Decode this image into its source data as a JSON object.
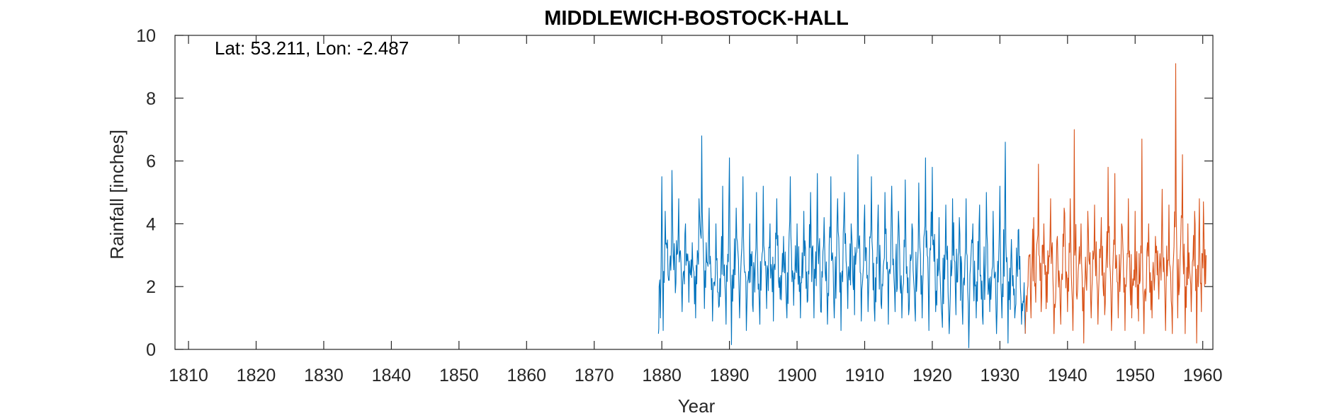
{
  "chart_data": {
    "type": "line",
    "title": "MIDDLEWICH-BOSTOCK-HALL",
    "xlabel": "Year",
    "ylabel": "Rainfall [inches]",
    "annotation": "Lat: 53.211, Lon: -2.487",
    "xlim": [
      1808,
      1961.5
    ],
    "ylim": [
      0,
      10
    ],
    "xticks": [
      1810,
      1820,
      1830,
      1840,
      1850,
      1860,
      1870,
      1880,
      1890,
      1900,
      1910,
      1920,
      1930,
      1940,
      1950,
      1960
    ],
    "yticks": [
      0,
      2,
      4,
      6,
      8,
      10
    ],
    "grid": false,
    "legend": "none",
    "series": [
      {
        "color": "#0072BD",
        "x_start": 1879.5,
        "x_end": 1933.75,
        "points": [
          [
            1879.5,
            0.5
          ],
          [
            1879.6,
            2.0
          ],
          [
            1879.8,
            1.0
          ],
          [
            1880.0,
            5.5
          ],
          [
            1880.2,
            0.6
          ],
          [
            1880.5,
            4.4
          ],
          [
            1881.0,
            2.2
          ],
          [
            1881.5,
            5.7
          ],
          [
            1882.0,
            1.8
          ],
          [
            1882.5,
            4.8
          ],
          [
            1883.0,
            1.2
          ],
          [
            1883.5,
            4.0
          ],
          [
            1884.0,
            1.5
          ],
          [
            1884.5,
            3.4
          ],
          [
            1885.0,
            1.0
          ],
          [
            1885.5,
            4.8
          ],
          [
            1885.9,
            6.8
          ],
          [
            1886.3,
            1.3
          ],
          [
            1887.0,
            4.5
          ],
          [
            1887.5,
            0.9
          ],
          [
            1888.0,
            4.0
          ],
          [
            1888.5,
            1.4
          ],
          [
            1889.0,
            5.2
          ],
          [
            1889.5,
            0.8
          ],
          [
            1890.0,
            6.1
          ],
          [
            1890.3,
            0.15
          ],
          [
            1891.0,
            4.5
          ],
          [
            1891.5,
            1.0
          ],
          [
            1892.0,
            5.5
          ],
          [
            1892.5,
            0.6
          ],
          [
            1893.0,
            4.0
          ],
          [
            1893.5,
            1.2
          ],
          [
            1894.0,
            5.0
          ],
          [
            1894.5,
            0.8
          ],
          [
            1895.0,
            5.2
          ],
          [
            1895.5,
            1.3
          ],
          [
            1896.0,
            4.0
          ],
          [
            1896.5,
            0.9
          ],
          [
            1897.0,
            4.8
          ],
          [
            1897.5,
            1.6
          ],
          [
            1898.0,
            3.6
          ],
          [
            1898.5,
            1.0
          ],
          [
            1899.0,
            5.5
          ],
          [
            1899.5,
            1.4
          ],
          [
            1900.0,
            4.0
          ],
          [
            1900.5,
            1.0
          ],
          [
            1901.0,
            4.4
          ],
          [
            1901.5,
            1.5
          ],
          [
            1902.0,
            5.0
          ],
          [
            1902.5,
            1.0
          ],
          [
            1903.0,
            5.6
          ],
          [
            1903.5,
            1.2
          ],
          [
            1904.0,
            4.2
          ],
          [
            1904.5,
            0.8
          ],
          [
            1905.0,
            5.5
          ],
          [
            1905.5,
            1.0
          ],
          [
            1906.0,
            4.8
          ],
          [
            1906.5,
            0.6
          ],
          [
            1907.0,
            5.0
          ],
          [
            1907.5,
            1.3
          ],
          [
            1908.0,
            4.0
          ],
          [
            1908.5,
            1.1
          ],
          [
            1909.0,
            6.2
          ],
          [
            1909.5,
            0.9
          ],
          [
            1910.0,
            4.6
          ],
          [
            1910.5,
            1.2
          ],
          [
            1911.0,
            5.5
          ],
          [
            1911.5,
            0.9
          ],
          [
            1912.0,
            4.6
          ],
          [
            1912.5,
            1.3
          ],
          [
            1913.0,
            5.0
          ],
          [
            1913.5,
            0.8
          ],
          [
            1914.0,
            5.2
          ],
          [
            1914.5,
            1.2
          ],
          [
            1915.0,
            4.4
          ],
          [
            1915.5,
            1.0
          ],
          [
            1916.0,
            5.4
          ],
          [
            1916.5,
            1.1
          ],
          [
            1917.0,
            4.0
          ],
          [
            1917.5,
            0.9
          ],
          [
            1918.0,
            5.3
          ],
          [
            1918.5,
            1.0
          ],
          [
            1919.0,
            6.1
          ],
          [
            1919.5,
            0.6
          ],
          [
            1920.0,
            5.8
          ],
          [
            1920.5,
            1.2
          ],
          [
            1921.0,
            4.2
          ],
          [
            1921.5,
            0.7
          ],
          [
            1922.0,
            4.6
          ],
          [
            1922.5,
            0.5
          ],
          [
            1923.0,
            4.8
          ],
          [
            1923.5,
            1.1
          ],
          [
            1924.0,
            4.2
          ],
          [
            1924.5,
            0.8
          ],
          [
            1925.0,
            4.8
          ],
          [
            1925.4,
            0.05
          ],
          [
            1926.0,
            4.0
          ],
          [
            1926.5,
            1.0
          ],
          [
            1927.0,
            4.6
          ],
          [
            1927.5,
            0.8
          ],
          [
            1928.0,
            5.0
          ],
          [
            1928.5,
            1.2
          ],
          [
            1929.0,
            4.4
          ],
          [
            1929.5,
            0.5
          ],
          [
            1930.0,
            5.2
          ],
          [
            1930.3,
            1.0
          ],
          [
            1930.8,
            6.6
          ],
          [
            1931.2,
            0.2
          ],
          [
            1931.7,
            3.5
          ],
          [
            1932.2,
            1.0
          ],
          [
            1932.7,
            3.8
          ],
          [
            1933.2,
            0.8
          ],
          [
            1933.5,
            1.5
          ],
          [
            1933.75,
            0.5
          ]
        ]
      },
      {
        "color": "#D95319",
        "x_start": 1933.75,
        "x_end": 1960.5,
        "points": [
          [
            1933.75,
            0.5
          ],
          [
            1934.0,
            1.2
          ],
          [
            1934.3,
            3.0
          ],
          [
            1934.6,
            1.0
          ],
          [
            1935.0,
            4.2
          ],
          [
            1935.3,
            1.5
          ],
          [
            1935.7,
            5.9
          ],
          [
            1936.1,
            1.2
          ],
          [
            1936.5,
            4.0
          ],
          [
            1937.0,
            1.5
          ],
          [
            1937.5,
            4.8
          ],
          [
            1938.0,
            0.5
          ],
          [
            1938.5,
            3.6
          ],
          [
            1939.0,
            0.8
          ],
          [
            1939.5,
            4.5
          ],
          [
            1940.0,
            1.2
          ],
          [
            1940.4,
            4.8
          ],
          [
            1940.8,
            0.6
          ],
          [
            1941.0,
            7.0
          ],
          [
            1941.4,
            1.6
          ],
          [
            1942.0,
            4.0
          ],
          [
            1942.4,
            0.2
          ],
          [
            1943.0,
            4.4
          ],
          [
            1943.5,
            1.0
          ],
          [
            1944.0,
            4.6
          ],
          [
            1944.5,
            0.8
          ],
          [
            1945.0,
            4.2
          ],
          [
            1945.5,
            1.1
          ],
          [
            1946.0,
            5.8
          ],
          [
            1946.5,
            0.6
          ],
          [
            1947.0,
            5.6
          ],
          [
            1947.5,
            1.0
          ],
          [
            1948.0,
            4.0
          ],
          [
            1948.5,
            0.6
          ],
          [
            1949.0,
            4.8
          ],
          [
            1949.5,
            1.0
          ],
          [
            1950.0,
            4.4
          ],
          [
            1950.5,
            0.9
          ],
          [
            1951.0,
            6.7
          ],
          [
            1951.3,
            0.5
          ],
          [
            1952.0,
            4.0
          ],
          [
            1952.5,
            1.0
          ],
          [
            1953.0,
            3.6
          ],
          [
            1953.5,
            1.6
          ],
          [
            1954.0,
            5.1
          ],
          [
            1954.5,
            0.6
          ],
          [
            1955.0,
            4.6
          ],
          [
            1955.5,
            0.5
          ],
          [
            1956.0,
            9.1
          ],
          [
            1956.3,
            1.0
          ],
          [
            1957.0,
            6.2
          ],
          [
            1957.4,
            0.5
          ],
          [
            1957.8,
            4.0
          ],
          [
            1958.3,
            1.2
          ],
          [
            1958.8,
            4.4
          ],
          [
            1959.1,
            0.2
          ],
          [
            1959.5,
            4.8
          ],
          [
            1959.8,
            1.2
          ],
          [
            1960.1,
            4.7
          ],
          [
            1960.5,
            3.0
          ]
        ]
      }
    ]
  }
}
